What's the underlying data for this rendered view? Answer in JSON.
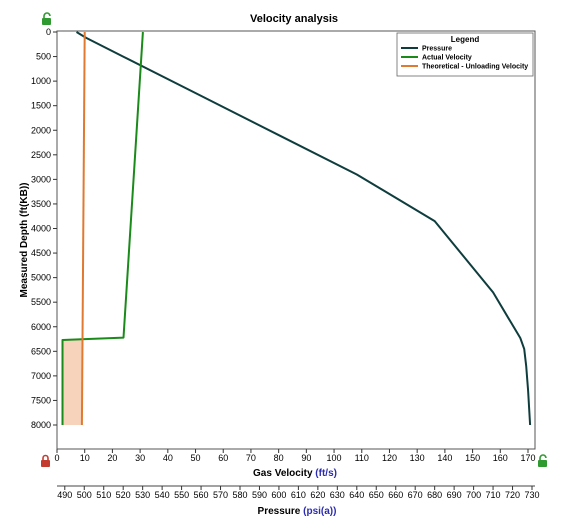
{
  "chart_data": {
    "type": "line",
    "title": "Velocity analysis",
    "ylabel": "Measured Depth",
    "ylabel_unit": "(ft(KB))",
    "ylim": [
      0,
      8000
    ],
    "y_ticks": [
      0,
      500,
      1000,
      1500,
      2000,
      2500,
      3000,
      3500,
      4000,
      4500,
      5000,
      5500,
      6000,
      6500,
      7000,
      7500,
      8000
    ],
    "y_inverted": true,
    "x_axes": [
      {
        "id": "velocity",
        "label": "Gas Velocity",
        "unit": "(ft/s)",
        "lim": [
          0,
          170
        ],
        "ticks": [
          0,
          10,
          20,
          30,
          40,
          50,
          60,
          70,
          80,
          90,
          100,
          110,
          120,
          130,
          140,
          150,
          160,
          170
        ]
      },
      {
        "id": "pressure",
        "label": "Pressure",
        "unit": "(psi(a))",
        "lim": [
          486,
          730
        ],
        "ticks": [
          490,
          500,
          510,
          520,
          530,
          540,
          550,
          560,
          570,
          580,
          590,
          600,
          610,
          620,
          630,
          640,
          650,
          660,
          670,
          680,
          690,
          700,
          710,
          720,
          730
        ]
      }
    ],
    "grid": false,
    "legend": {
      "title": "Legend",
      "position": "top-right"
    },
    "series": [
      {
        "name": "Pressure",
        "axis": "pressure",
        "color": "#0f3d3d",
        "points": [
          [
            496,
            0
          ],
          [
            501,
            120
          ],
          [
            520,
            500
          ],
          [
            560,
            1300
          ],
          [
            600,
            2100
          ],
          [
            640,
            2900
          ],
          [
            680,
            3850
          ],
          [
            710,
            5300
          ],
          [
            719,
            5900
          ],
          [
            724,
            6230
          ],
          [
            726,
            6450
          ],
          [
            727,
            6800
          ],
          [
            728,
            7300
          ],
          [
            729,
            8000
          ]
        ]
      },
      {
        "name": "Actual Velocity",
        "axis": "velocity",
        "color": "#1a8a1a",
        "points": [
          [
            31,
            0
          ],
          [
            24,
            6220
          ],
          [
            2,
            6270
          ],
          [
            2,
            8000
          ]
        ]
      },
      {
        "name": "Theoretical - Unloading Velocity",
        "axis": "velocity",
        "color": "#e07a30",
        "fill": "#f8d3bc",
        "points": [
          [
            10,
            0
          ],
          [
            9,
            8000
          ]
        ]
      }
    ]
  }
}
